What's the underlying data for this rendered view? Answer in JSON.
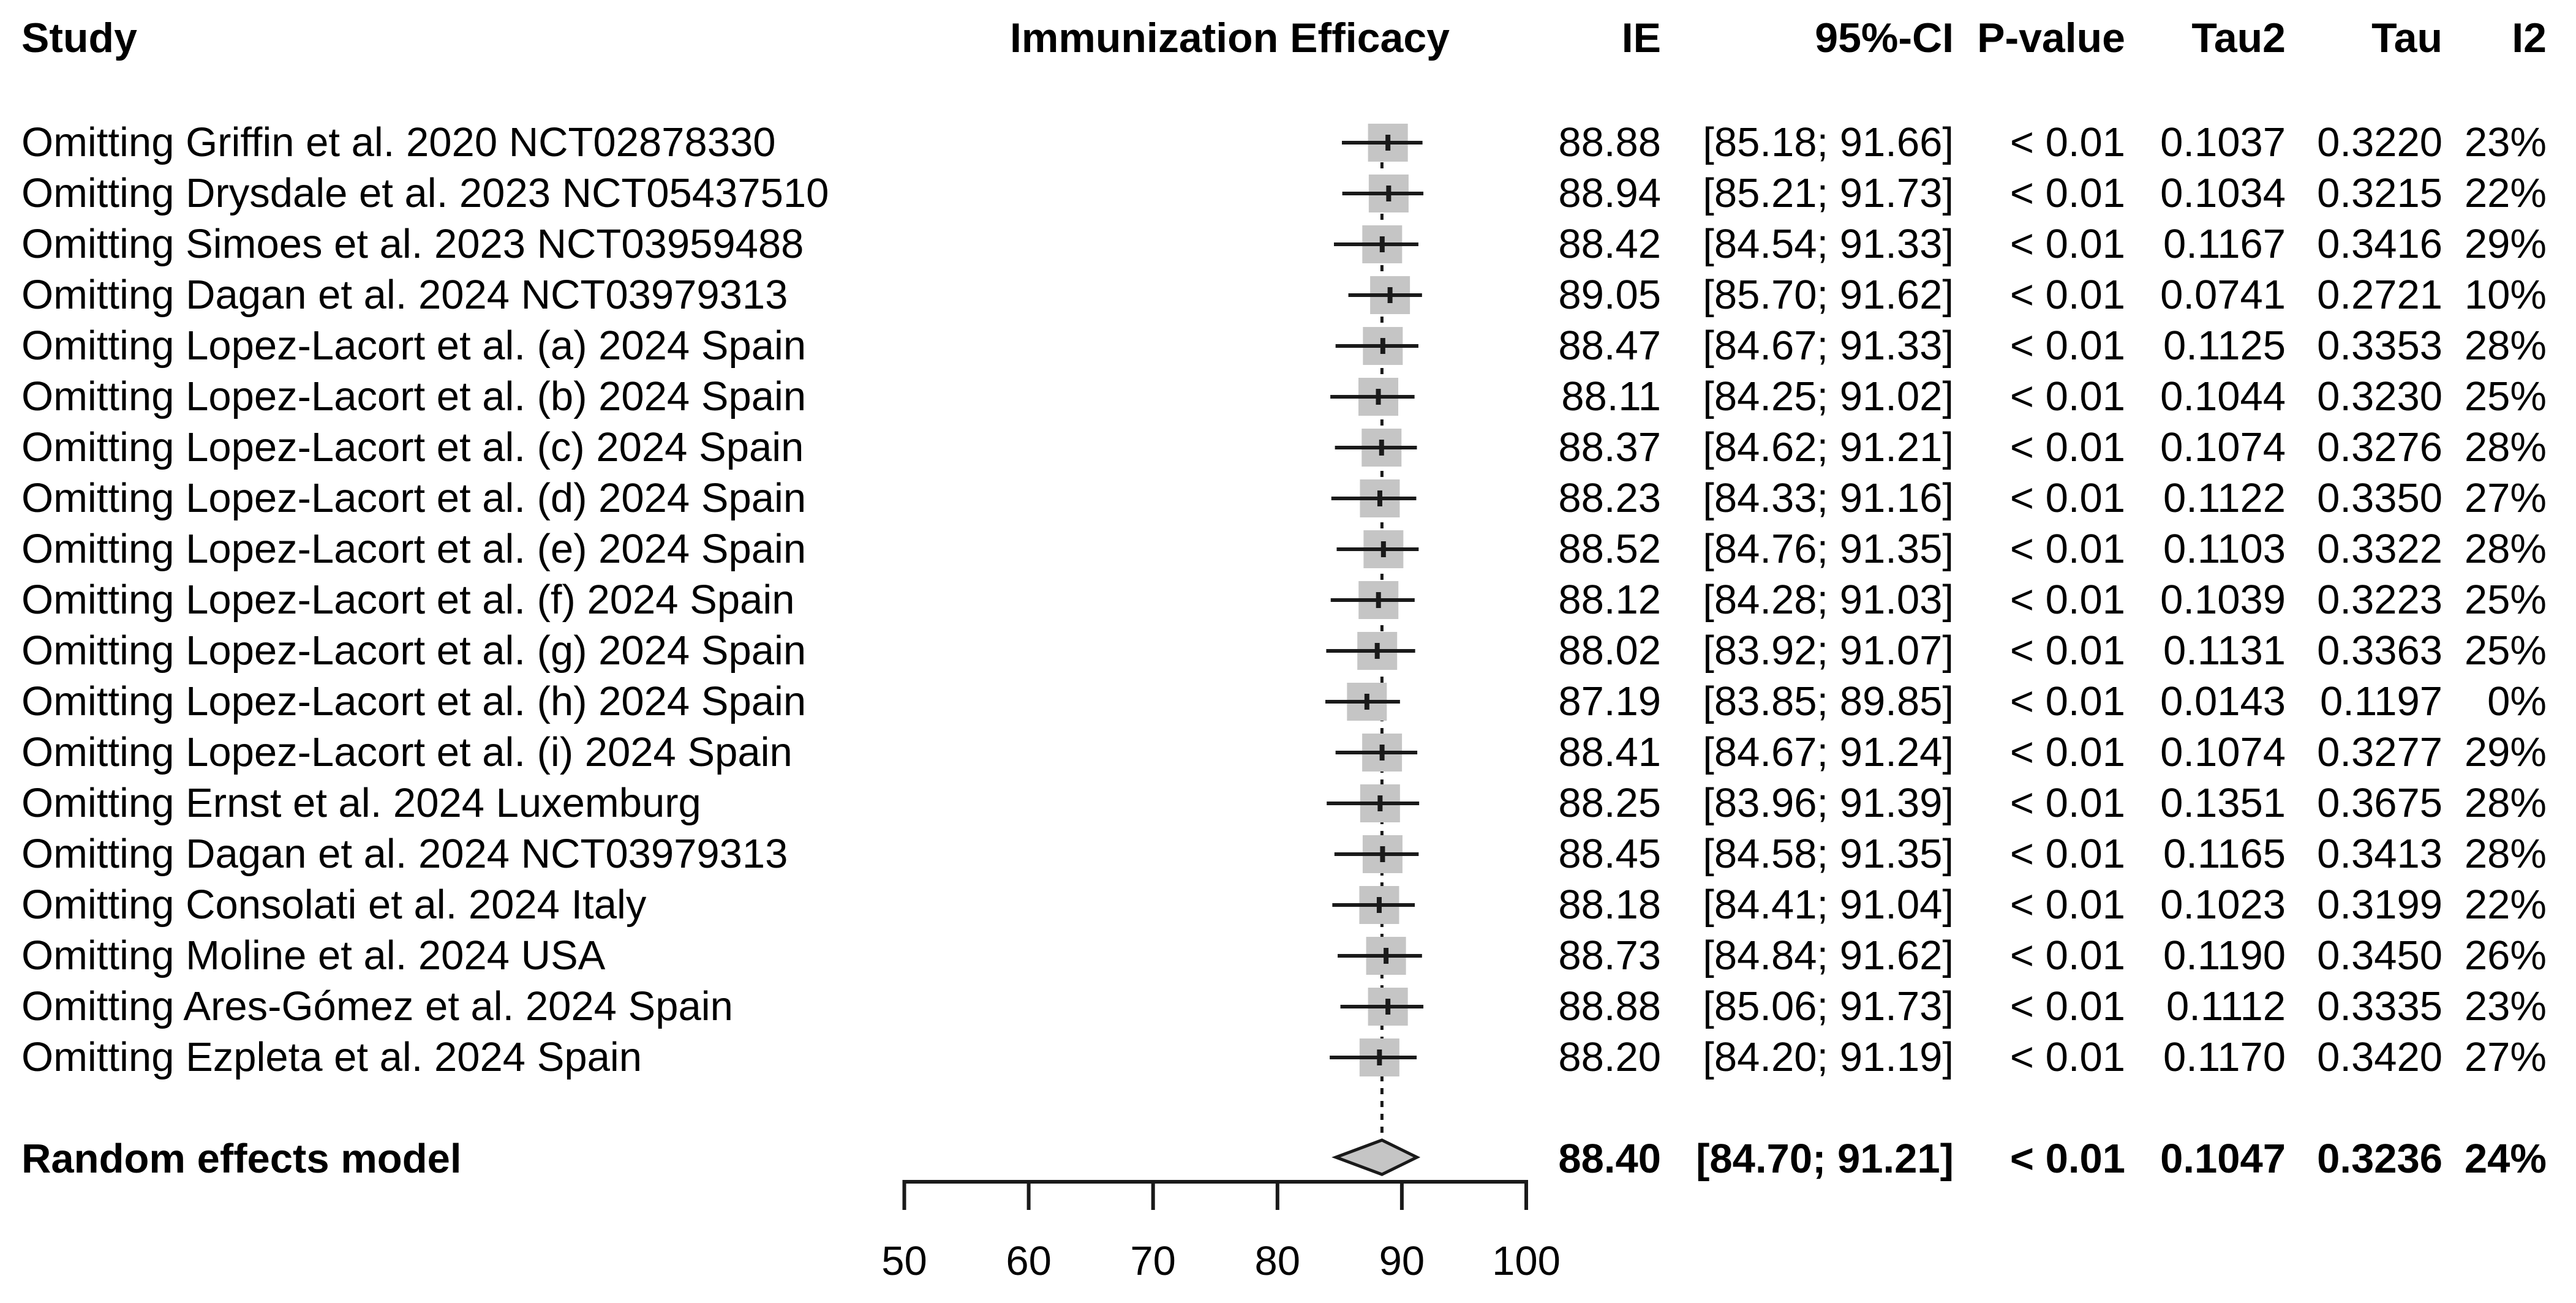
{
  "header": {
    "study": "Study",
    "plot_title": "Immunization Efficacy",
    "ie": "IE",
    "ci": "95%-CI",
    "p_value": "P-value",
    "tau2": "Tau2",
    "tau": "Tau",
    "i2": "I2"
  },
  "chart_data": {
    "type": "forest",
    "title": "Immunization Efficacy",
    "x_axis": {
      "min": 50,
      "max": 100,
      "ticks": [
        50,
        60,
        70,
        80,
        90,
        100
      ]
    },
    "reference_line": 88.4,
    "rows": [
      {
        "label": "Omitting Griffin et al. 2020 NCT02878330",
        "ie": 88.88,
        "ci_low": 85.18,
        "ci_high": 91.66,
        "p": "< 0.01",
        "tau2": "0.1037",
        "tau": "0.3220",
        "i2": "23%"
      },
      {
        "label": "Omitting Drysdale et al. 2023 NCT05437510",
        "ie": 88.94,
        "ci_low": 85.21,
        "ci_high": 91.73,
        "p": "< 0.01",
        "tau2": "0.1034",
        "tau": "0.3215",
        "i2": "22%"
      },
      {
        "label": "Omitting Simoes et al. 2023 NCT03959488",
        "ie": 88.42,
        "ci_low": 84.54,
        "ci_high": 91.33,
        "p": "< 0.01",
        "tau2": "0.1167",
        "tau": "0.3416",
        "i2": "29%"
      },
      {
        "label": "Omitting Dagan et al. 2024 NCT03979313",
        "ie": 89.05,
        "ci_low": 85.7,
        "ci_high": 91.62,
        "p": "< 0.01",
        "tau2": "0.0741",
        "tau": "0.2721",
        "i2": "10%"
      },
      {
        "label": "Omitting Lopez-Lacort et al. (a) 2024 Spain",
        "ie": 88.47,
        "ci_low": 84.67,
        "ci_high": 91.33,
        "p": "< 0.01",
        "tau2": "0.1125",
        "tau": "0.3353",
        "i2": "28%"
      },
      {
        "label": "Omitting Lopez-Lacort et al. (b) 2024 Spain",
        "ie": 88.11,
        "ci_low": 84.25,
        "ci_high": 91.02,
        "p": "< 0.01",
        "tau2": "0.1044",
        "tau": "0.3230",
        "i2": "25%"
      },
      {
        "label": "Omitting Lopez-Lacort et al. (c) 2024 Spain",
        "ie": 88.37,
        "ci_low": 84.62,
        "ci_high": 91.21,
        "p": "< 0.01",
        "tau2": "0.1074",
        "tau": "0.3276",
        "i2": "28%"
      },
      {
        "label": "Omitting Lopez-Lacort et al. (d) 2024 Spain",
        "ie": 88.23,
        "ci_low": 84.33,
        "ci_high": 91.16,
        "p": "< 0.01",
        "tau2": "0.1122",
        "tau": "0.3350",
        "i2": "27%"
      },
      {
        "label": "Omitting Lopez-Lacort et al. (e) 2024 Spain",
        "ie": 88.52,
        "ci_low": 84.76,
        "ci_high": 91.35,
        "p": "< 0.01",
        "tau2": "0.1103",
        "tau": "0.3322",
        "i2": "28%"
      },
      {
        "label": "Omitting Lopez-Lacort et al. (f) 2024 Spain",
        "ie": 88.12,
        "ci_low": 84.28,
        "ci_high": 91.03,
        "p": "< 0.01",
        "tau2": "0.1039",
        "tau": "0.3223",
        "i2": "25%"
      },
      {
        "label": "Omitting Lopez-Lacort et al. (g) 2024 Spain",
        "ie": 88.02,
        "ci_low": 83.92,
        "ci_high": 91.07,
        "p": "< 0.01",
        "tau2": "0.1131",
        "tau": "0.3363",
        "i2": "25%"
      },
      {
        "label": "Omitting Lopez-Lacort et al. (h) 2024 Spain",
        "ie": 87.19,
        "ci_low": 83.85,
        "ci_high": 89.85,
        "p": "< 0.01",
        "tau2": "0.0143",
        "tau": "0.1197",
        "i2": "0%"
      },
      {
        "label": "Omitting Lopez-Lacort et al. (i) 2024 Spain",
        "ie": 88.41,
        "ci_low": 84.67,
        "ci_high": 91.24,
        "p": "< 0.01",
        "tau2": "0.1074",
        "tau": "0.3277",
        "i2": "29%"
      },
      {
        "label": "Omitting Ernst et al. 2024 Luxemburg",
        "ie": 88.25,
        "ci_low": 83.96,
        "ci_high": 91.39,
        "p": "< 0.01",
        "tau2": "0.1351",
        "tau": "0.3675",
        "i2": "28%"
      },
      {
        "label": "Omitting Dagan et al. 2024 NCT03979313",
        "ie": 88.45,
        "ci_low": 84.58,
        "ci_high": 91.35,
        "p": "< 0.01",
        "tau2": "0.1165",
        "tau": "0.3413",
        "i2": "28%"
      },
      {
        "label": "Omitting Consolati et al. 2024 Italy",
        "ie": 88.18,
        "ci_low": 84.41,
        "ci_high": 91.04,
        "p": "< 0.01",
        "tau2": "0.1023",
        "tau": "0.3199",
        "i2": "22%"
      },
      {
        "label": "Omitting Moline et al. 2024 USA",
        "ie": 88.73,
        "ci_low": 84.84,
        "ci_high": 91.62,
        "p": "< 0.01",
        "tau2": "0.1190",
        "tau": "0.3450",
        "i2": "26%"
      },
      {
        "label": "Omitting Ares-Gómez et al. 2024 Spain",
        "ie": 88.88,
        "ci_low": 85.06,
        "ci_high": 91.73,
        "p": "< 0.01",
        "tau2": "0.1112",
        "tau": "0.3335",
        "i2": "23%"
      },
      {
        "label": "Omitting Ezpleta et al. 2024 Spain",
        "ie": 88.2,
        "ci_low": 84.2,
        "ci_high": 91.19,
        "p": "< 0.01",
        "tau2": "0.1170",
        "tau": "0.3420",
        "i2": "27%"
      }
    ],
    "summary": {
      "label": "Random effects model",
      "ie": 88.4,
      "ci_low": 84.7,
      "ci_high": 91.21,
      "p": "< 0.01",
      "tau2": "0.1047",
      "tau": "0.3236",
      "i2": "24%"
    }
  },
  "colors": {
    "square": "#c5c5c5",
    "diamond_fill": "#c5c5c5",
    "line": "#1a1a1a",
    "text": "#000000"
  }
}
